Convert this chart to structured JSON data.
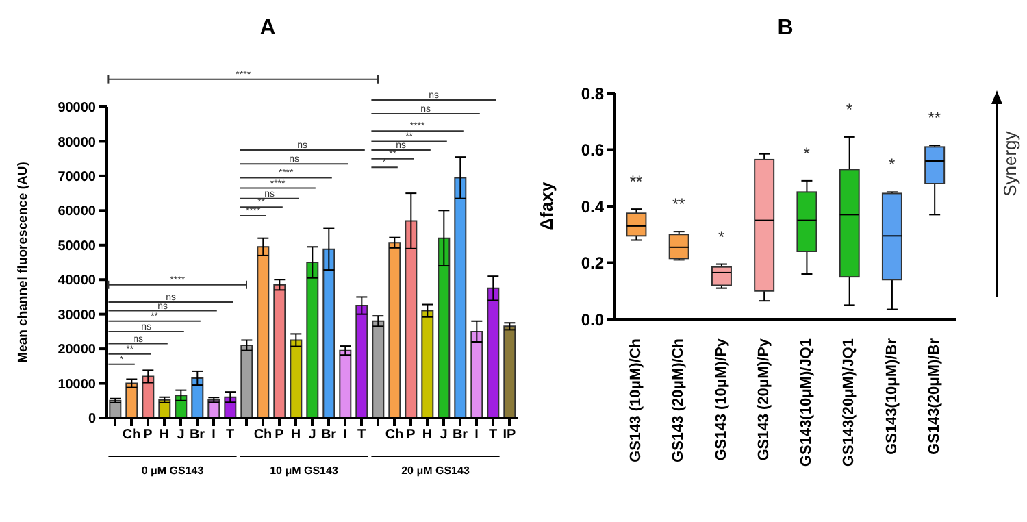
{
  "chart_data": [
    {
      "type": "bar",
      "title": "A",
      "ylabel": "Mean channel fluorescence (AU)",
      "categories": [
        null,
        "Ch",
        "P",
        "H",
        "J",
        "Br",
        "I",
        "T",
        null,
        "Ch",
        "P",
        "H",
        "J",
        "Br",
        "I",
        "T",
        null,
        "Ch",
        "P",
        "H",
        "J",
        "Br",
        "I",
        "T",
        "IP"
      ],
      "values": [
        5000,
        10000,
        12000,
        5200,
        6500,
        11500,
        5200,
        6000,
        21000,
        49500,
        38500,
        22500,
        45000,
        48800,
        19500,
        32500,
        28000,
        50700,
        57000,
        31000,
        52000,
        69500,
        25000,
        37500,
        26500
      ],
      "errors": [
        600,
        1200,
        1800,
        800,
        1500,
        2000,
        700,
        1500,
        1500,
        2500,
        1500,
        1800,
        4500,
        6000,
        1300,
        2500,
        1500,
        1500,
        8000,
        1800,
        8000,
        6000,
        3000,
        3500,
        1000
      ],
      "colors": [
        "#a0a0a0",
        "#f7a04a",
        "#f08080",
        "#c8c000",
        "#22bb22",
        "#4a9ef0",
        "#e08ef0",
        "#a020e0",
        "#a0a0a0",
        "#f7a04a",
        "#f08080",
        "#c8c000",
        "#22bb22",
        "#4a9ef0",
        "#e08ef0",
        "#a020e0",
        "#a0a0a0",
        "#f7a04a",
        "#f08080",
        "#c8c000",
        "#22bb22",
        "#4a9ef0",
        "#e08ef0",
        "#a020e0",
        "#8b7a3a"
      ],
      "ylim": [
        0,
        90000
      ],
      "yticks": [
        0,
        10000,
        20000,
        30000,
        40000,
        50000,
        60000,
        70000,
        80000,
        90000
      ],
      "annotations": [
        "0 μM GS143",
        "10 μM GS143",
        "20 μM GS143",
        "*",
        "**",
        "ns",
        "ns",
        "**",
        "ns",
        "ns",
        "****",
        "****",
        "**",
        "ns",
        "****",
        "****",
        "ns",
        "ns",
        "*",
        "**",
        "ns",
        "**",
        "****",
        "ns",
        "ns",
        "****"
      ]
    },
    {
      "type": "box",
      "title": "B",
      "ylabel": "Δfaxy",
      "categories": [
        "GS143  (10μM)/Ch",
        "GS143  (20μM)/Ch",
        "GS143  (10μM)/Py",
        "GS143  (20μM)/Py",
        "GS143(10μM)/JQ1",
        "GS143(20μM)/JQ1",
        "GS143(10μM)/Br",
        "GS143(20μM)/Br"
      ],
      "boxes": [
        {
          "low": 0.28,
          "q1": 0.295,
          "median": 0.33,
          "q3": 0.375,
          "high": 0.39
        },
        {
          "low": 0.21,
          "q1": 0.215,
          "median": 0.255,
          "q3": 0.3,
          "high": 0.31
        },
        {
          "low": 0.11,
          "q1": 0.12,
          "median": 0.165,
          "q3": 0.185,
          "high": 0.195
        },
        {
          "low": 0.065,
          "q1": 0.1,
          "median": 0.35,
          "q3": 0.565,
          "high": 0.585
        },
        {
          "low": 0.16,
          "q1": 0.24,
          "median": 0.35,
          "q3": 0.45,
          "high": 0.49
        },
        {
          "low": 0.05,
          "q1": 0.15,
          "median": 0.37,
          "q3": 0.53,
          "high": 0.645
        },
        {
          "low": 0.035,
          "q1": 0.14,
          "median": 0.295,
          "q3": 0.445,
          "high": 0.45
        },
        {
          "low": 0.37,
          "q1": 0.48,
          "median": 0.56,
          "q3": 0.61,
          "high": 0.615
        }
      ],
      "colors": [
        "#f7a04a",
        "#f7a04a",
        "#f4a0a0",
        "#f4a0a0",
        "#22bb22",
        "#22bb22",
        "#5aa0f0",
        "#5aa0f0"
      ],
      "ylim": [
        0,
        0.8
      ],
      "yticks": [
        {
          "value": 0,
          "label": "0.0"
        },
        {
          "value": 0.2,
          "label": "0.2"
        },
        {
          "value": 0.4,
          "label": "0.4"
        },
        {
          "value": 0.6,
          "label": "0.6"
        },
        {
          "value": 0.8,
          "label": "0.8"
        }
      ],
      "annotations": [
        "**",
        "**",
        "*",
        "*",
        "*",
        "*",
        "**",
        "Synergy"
      ]
    }
  ]
}
